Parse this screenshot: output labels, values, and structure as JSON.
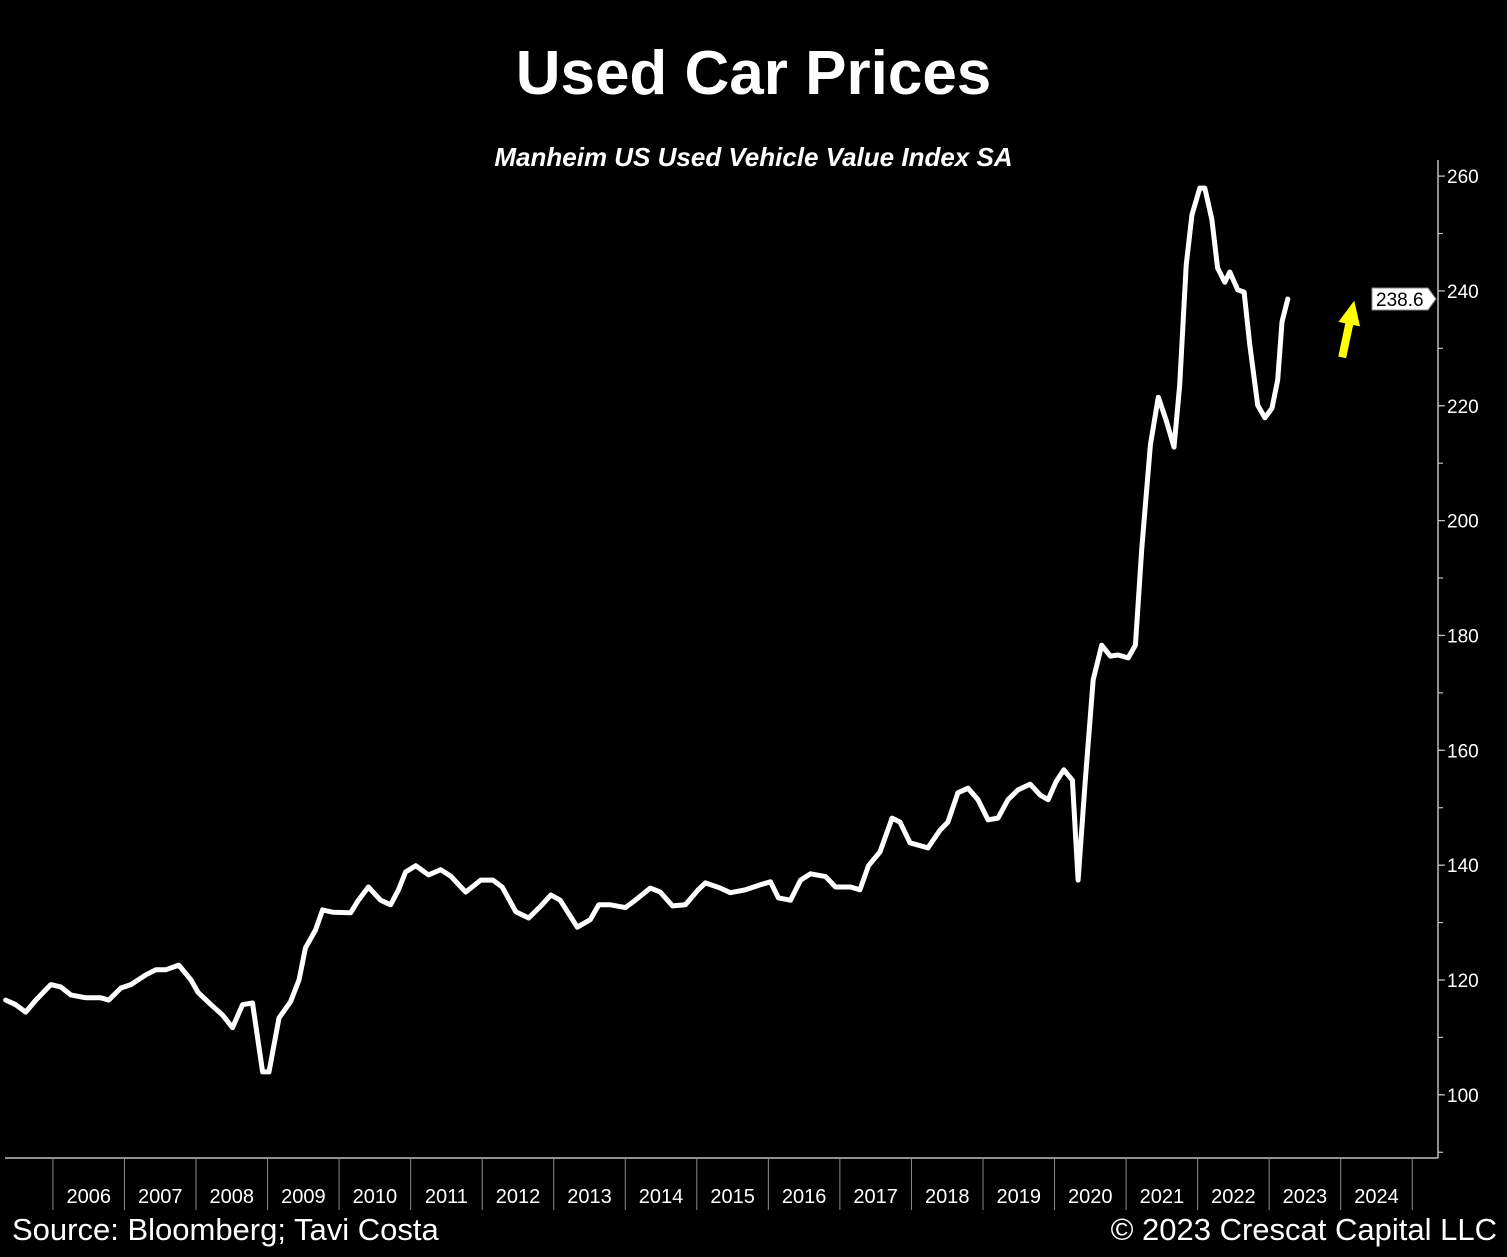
{
  "chart_data": {
    "type": "line",
    "title": "Used Car Prices",
    "subtitle": "Manheim US Used Vehicle Value Index SA",
    "xlabel": "",
    "ylabel": "",
    "xlim": [
      2005.33,
      2025.36
    ],
    "ylim": [
      89,
      262.8
    ],
    "y_ticks": [
      100,
      120,
      140,
      160,
      180,
      200,
      220,
      240,
      260
    ],
    "x_tick_labels": [
      "2006",
      "2007",
      "2008",
      "2009",
      "2010",
      "2011",
      "2012",
      "2013",
      "2014",
      "2015",
      "2016",
      "2017",
      "2018",
      "2019",
      "2020",
      "2021",
      "2022",
      "2023",
      "2024"
    ],
    "grid": false,
    "y_axis_position": "right",
    "last_value_label": "238.6",
    "line_color": "#ffffff",
    "annotation": {
      "type": "arrow",
      "direction": "up",
      "color": "#ffff00"
    },
    "series": [
      {
        "x": [
          2005.34,
          2005.48,
          2005.62,
          2005.76,
          2005.97,
          2006.11,
          2006.25,
          2006.46,
          2006.67,
          2006.78,
          2006.95,
          2007.09,
          2007.3,
          2007.44,
          2007.58,
          2007.76,
          2007.93,
          2008.03,
          2008.21,
          2008.37,
          2008.51,
          2008.65,
          2008.79,
          2008.93,
          2009.02,
          2009.16,
          2009.32,
          2009.44,
          2009.53,
          2009.67,
          2009.77,
          2009.91,
          2010.16,
          2010.27,
          2010.41,
          2010.58,
          2010.72,
          2010.83,
          2010.93,
          2011.07,
          2011.25,
          2011.42,
          2011.56,
          2011.77,
          2011.98,
          2012.15,
          2012.28,
          2012.47,
          2012.65,
          2012.82,
          2012.96,
          2013.09,
          2013.33,
          2013.51,
          2013.63,
          2013.79,
          2014.0,
          2014.14,
          2014.35,
          2014.49,
          2014.66,
          2014.84,
          2015.02,
          2015.12,
          2015.33,
          2015.47,
          2015.68,
          2015.89,
          2016.03,
          2016.14,
          2016.31,
          2016.45,
          2016.59,
          2016.8,
          2016.94,
          2017.15,
          2017.28,
          2017.4,
          2017.56,
          2017.73,
          2017.84,
          2017.98,
          2018.23,
          2018.4,
          2018.51,
          2018.65,
          2018.79,
          2018.93,
          2019.07,
          2019.21,
          2019.35,
          2019.49,
          2019.66,
          2019.8,
          2019.91,
          2020.02,
          2020.13,
          2020.25,
          2020.33,
          2020.43,
          2020.54,
          2020.66,
          2020.78,
          2020.89,
          2021.03,
          2021.13,
          2021.22,
          2021.34,
          2021.45,
          2021.56,
          2021.67,
          2021.75,
          2021.84,
          2021.92,
          2022.03,
          2022.1,
          2022.2,
          2022.28,
          2022.38,
          2022.45,
          2022.56,
          2022.65,
          2022.73,
          2022.84,
          2022.94,
          2023.04,
          2023.12,
          2023.18,
          2023.26
        ],
        "values": [
          116.5,
          115.7,
          114.4,
          116.5,
          119.2,
          118.8,
          117.4,
          116.9,
          116.9,
          116.5,
          118.6,
          119.2,
          120.9,
          121.8,
          121.8,
          122.6,
          120.0,
          117.8,
          115.7,
          113.9,
          111.7,
          115.7,
          116.0,
          104.0,
          104.0,
          113.4,
          116.2,
          120.0,
          125.6,
          128.7,
          132.2,
          131.8,
          131.7,
          133.9,
          136.2,
          133.9,
          133.1,
          135.7,
          138.8,
          139.9,
          138.3,
          139.2,
          138.1,
          135.3,
          137.4,
          137.4,
          136.2,
          131.9,
          130.8,
          132.9,
          134.8,
          133.9,
          129.2,
          130.5,
          133.1,
          133.1,
          132.6,
          133.9,
          136.0,
          135.3,
          132.9,
          133.1,
          135.7,
          136.9,
          136.0,
          135.2,
          135.7,
          136.6,
          137.1,
          134.3,
          133.9,
          137.4,
          138.5,
          138.0,
          136.2,
          136.2,
          135.7,
          139.9,
          142.3,
          148.2,
          147.5,
          143.9,
          143.0,
          146.1,
          147.5,
          152.6,
          153.4,
          151.4,
          147.9,
          148.2,
          151.4,
          153.1,
          154.1,
          152.2,
          151.4,
          154.5,
          156.6,
          154.8,
          137.4,
          154.8,
          172.3,
          178.3,
          176.4,
          176.6,
          176.1,
          178.3,
          195.2,
          213.2,
          221.5,
          217.5,
          212.8,
          223.6,
          244.5,
          253.2,
          257.9,
          257.9,
          252.4,
          244.0,
          241.5,
          243.3,
          240.2,
          239.8,
          230.6,
          220.1,
          217.9,
          219.6,
          224.5,
          234.6,
          238.6
        ]
      }
    ]
  },
  "footer": {
    "source": "Source: Bloomberg; Tavi Costa",
    "copyright": "© 2023 Crescat Capital LLC"
  }
}
